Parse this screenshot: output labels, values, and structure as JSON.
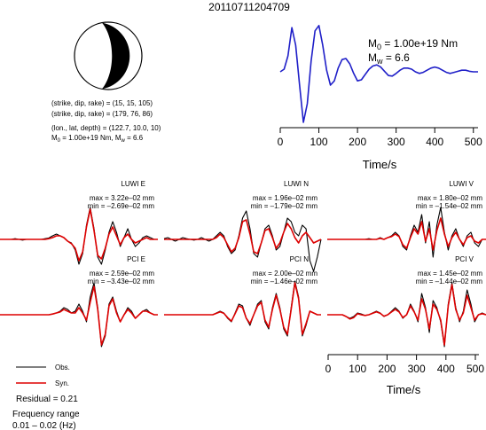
{
  "event_id": "20110711204709",
  "mechanism": {
    "line1": "(strike, dip, rake) = (15, 15, 105)",
    "line2": "(strike, dip, rake) = (179, 76, 86)",
    "line3": "(lon., lat, depth) = (122.7, 10.0, 10)",
    "line4_prefix": "M",
    "line4_sub0": "0",
    "line4_mid": " = 1.00e+19 Nm, M",
    "line4_subw": "w",
    "line4_end": " = 6.6"
  },
  "stf": {
    "m0_prefix": "M",
    "m0_sub": "0",
    "m0_value": " = 1.00e+19 Nm",
    "mw_prefix": "M",
    "mw_sub": "w",
    "mw_value": " = 6.6",
    "xlabel": "Time/s",
    "line_color": "#1f1fc8"
  },
  "residual": "Residual = 0.21",
  "freq_label": "Frequency range",
  "freq_value": "0.01 – 0.02 (Hz)",
  "legend": [
    {
      "label": "Obs.",
      "color": "#000000"
    },
    {
      "label": "Syn.",
      "color": "#dd0000"
    }
  ],
  "panels": [
    {
      "title": "LUWI E",
      "max": "max = 3.22e–02 mm",
      "min": "min = –2.69e–02 mm"
    },
    {
      "title": "LUWI N",
      "max": "max = 1.96e–02 mm",
      "min": "min = –1.79e–02 mm"
    },
    {
      "title": "LUWI V",
      "max": "max = 1.80e–02 mm",
      "min": "min = –1.54e–02 mm"
    },
    {
      "title": "PCI E",
      "max": "max = 2.59e–02 mm",
      "min": "min = –3.43e–02 mm"
    },
    {
      "title": "PCI N",
      "max": "max = 2.00e–02 mm",
      "min": "min = –1.46e–02 mm"
    },
    {
      "title": "PCI V",
      "max": "max = 1.45e–02 mm",
      "min": "min = –1.44e–02 mm"
    }
  ],
  "wave_xlabel": "Time/s",
  "chart_data": [
    {
      "type": "line",
      "title": "",
      "xlabel": "Time/s",
      "ylabel": "",
      "xlim": [
        0,
        512
      ],
      "xticks": [
        0,
        100,
        200,
        300,
        400,
        500
      ],
      "series": [
        {
          "x": [
            0,
            10,
            20,
            30,
            40,
            50,
            60,
            70,
            80,
            90,
            100,
            110,
            120,
            130,
            140,
            150,
            160,
            170,
            180,
            190,
            200,
            210,
            220,
            230,
            240,
            250,
            260,
            270,
            280,
            290,
            300,
            310,
            320,
            330,
            340,
            350,
            360,
            370,
            380,
            390,
            400,
            410,
            420,
            430,
            440,
            450,
            460,
            470,
            480,
            490,
            500,
            512
          ],
          "y": [
            0.05,
            0.1,
            0.35,
            0.88,
            0.55,
            -0.2,
            -0.9,
            -0.55,
            0.25,
            0.82,
            0.92,
            0.55,
            0.08,
            -0.2,
            -0.12,
            0.12,
            0.28,
            0.3,
            0.2,
            0.02,
            -0.12,
            -0.1,
            0.0,
            0.1,
            0.16,
            0.18,
            0.14,
            0.06,
            -0.02,
            -0.03,
            0.02,
            0.08,
            0.12,
            0.12,
            0.1,
            0.05,
            0.02,
            0.04,
            0.08,
            0.12,
            0.14,
            0.12,
            0.08,
            0.04,
            0.02,
            0.04,
            0.06,
            0.08,
            0.08,
            0.06,
            0.05,
            0.05
          ]
        }
      ]
    },
    {
      "type": "line",
      "title": "",
      "xlabel": "Time/s",
      "xlim": [
        0,
        512
      ],
      "xticks": [
        0,
        100,
        200,
        300,
        400,
        500
      ],
      "panels": [
        {
          "name": "LUWI E",
          "ylim": [
            -1,
            1
          ],
          "obs": [
            0,
            0,
            0,
            0,
            0.02,
            0,
            -0.02,
            0,
            0,
            0,
            0,
            0,
            0.02,
            0.04,
            0.1,
            0.15,
            0.1,
            0.05,
            -0.05,
            -0.1,
            -0.3,
            -0.7,
            -0.4,
            0.4,
            0.9,
            0.3,
            -0.5,
            -0.7,
            -0.3,
            0.2,
            0.5,
            0.2,
            -0.2,
            0.05,
            0.3,
            0,
            -0.2,
            -0.1,
            0.05,
            0.1,
            0.05,
            0,
            0
          ],
          "syn": [
            0,
            0,
            0,
            0,
            0,
            0,
            0,
            0,
            0,
            0,
            0,
            0,
            0,
            0.02,
            0.05,
            0.1,
            0.1,
            0.05,
            -0.05,
            -0.12,
            -0.25,
            -0.6,
            -0.35,
            0.35,
            0.85,
            0.25,
            -0.45,
            -0.55,
            -0.25,
            0.15,
            0.35,
            0.1,
            -0.15,
            0.05,
            0.15,
            0,
            -0.1,
            -0.05,
            0,
            0.05,
            0,
            0,
            0
          ]
        },
        {
          "name": "LUWI N",
          "ylim": [
            -1,
            1
          ],
          "obs": [
            0.02,
            0.05,
            0,
            -0.05,
            0,
            0.05,
            0.02,
            0,
            -0.02,
            0,
            0.05,
            0,
            -0.05,
            0,
            0.1,
            0.2,
            0.1,
            -0.2,
            -0.4,
            -0.3,
            0.1,
            0.6,
            0.8,
            0.3,
            -0.4,
            -0.5,
            -0.1,
            0.3,
            0.4,
            0.1,
            -0.3,
            -0.2,
            0.2,
            0.6,
            0.5,
            0.2,
            0.1,
            0.4,
            0.3,
            -0.6,
            -0.9,
            -0.5,
            0
          ],
          "syn": [
            0,
            0,
            0,
            0,
            0,
            0,
            0,
            0,
            0,
            0,
            0,
            0,
            0,
            0,
            0.05,
            0.15,
            0.05,
            -0.15,
            -0.35,
            -0.25,
            0.05,
            0.5,
            0.55,
            0.15,
            -0.35,
            -0.4,
            -0.1,
            0.25,
            0.3,
            0.05,
            -0.25,
            -0.1,
            0.2,
            0.45,
            0.3,
            0.05,
            -0.1,
            0.1,
            0.2,
            0.05,
            -0.1,
            -0.05,
            0
          ]
        },
        {
          "name": "LUWI V",
          "ylim": [
            -1,
            1
          ],
          "obs": [
            0,
            0,
            0,
            0,
            0,
            0,
            0,
            0,
            0,
            0,
            0,
            0.02,
            0,
            0,
            0.05,
            0,
            0.05,
            0.1,
            0.2,
            0.1,
            -0.2,
            -0.3,
            0.1,
            0.4,
            0.2,
            0.7,
            -0.1,
            0.5,
            -0.5,
            0.4,
            0.9,
            0.2,
            -0.3,
            0.1,
            0.3,
            0,
            -0.2,
            0.1,
            0.2,
            -0.1,
            -0.2,
            0,
            0
          ],
          "syn": [
            0,
            0,
            0,
            0,
            0,
            0,
            0,
            0,
            0,
            0,
            0,
            0,
            0,
            0,
            0.03,
            0,
            0.05,
            0.08,
            0.15,
            0.08,
            -0.15,
            -0.25,
            0.05,
            0.3,
            0.15,
            0.5,
            -0.05,
            0.3,
            -0.3,
            0.25,
            0.6,
            0.15,
            -0.2,
            0.05,
            0.2,
            0,
            -0.15,
            0.05,
            0.1,
            -0.05,
            -0.1,
            0,
            0
          ]
        },
        {
          "name": "PCI E",
          "ylim": [
            -1,
            1
          ],
          "obs": [
            0,
            0,
            0,
            0,
            0,
            0,
            0,
            0,
            0,
            0,
            0,
            0,
            0,
            0,
            0.02,
            0.05,
            0.1,
            0.2,
            0.15,
            0.05,
            0.1,
            0.3,
            0.1,
            -0.2,
            0.5,
            0.9,
            0.2,
            -0.9,
            -0.6,
            0.3,
            0.5,
            0.1,
            -0.2,
            0,
            0.2,
            0.1,
            -0.1,
            0,
            0.1,
            0.15,
            0.05,
            0,
            0
          ],
          "syn": [
            0,
            0,
            0,
            0,
            0,
            0,
            0,
            0,
            0,
            0,
            0,
            0,
            0,
            0,
            0.02,
            0.05,
            0.08,
            0.15,
            0.1,
            0.05,
            0.05,
            0.2,
            0.05,
            -0.15,
            0.35,
            0.8,
            0.15,
            -0.85,
            -0.55,
            0.25,
            0.45,
            0.05,
            -0.2,
            0,
            0.15,
            0.05,
            -0.1,
            0,
            0.1,
            0.1,
            0.05,
            0,
            0
          ]
        },
        {
          "name": "PCI N",
          "ylim": [
            -1,
            1
          ],
          "obs": [
            0,
            0,
            0,
            0,
            0,
            0,
            0,
            0,
            0,
            0,
            0,
            0,
            0,
            0,
            0.05,
            0.1,
            0.05,
            -0.1,
            -0.2,
            0.05,
            0.3,
            0.25,
            -0.1,
            -0.3,
            0,
            0.3,
            0.4,
            -0.2,
            -0.4,
            0.2,
            0.6,
            0.2,
            -0.4,
            -0.6,
            0.2,
            0.95,
            0.5,
            -0.6,
            -0.3,
            0.1,
            0.05,
            0,
            0
          ],
          "syn": [
            0,
            0,
            0,
            0,
            0,
            0,
            0,
            0,
            0,
            0,
            0,
            0,
            0,
            0,
            0.04,
            0.08,
            0.04,
            -0.08,
            -0.18,
            0.03,
            0.25,
            0.2,
            -0.1,
            -0.25,
            0,
            0.25,
            0.35,
            -0.15,
            -0.35,
            0.15,
            0.55,
            0.15,
            -0.35,
            -0.55,
            0.15,
            0.9,
            0.45,
            -0.55,
            -0.25,
            0.1,
            0.05,
            0,
            0
          ]
        },
        {
          "name": "PCI V",
          "ylim": [
            -1,
            1
          ],
          "obs": [
            0,
            0,
            0,
            0,
            0,
            -0.05,
            -0.1,
            -0.05,
            0.05,
            0.02,
            -0.02,
            0,
            0.05,
            0.1,
            0.05,
            -0.05,
            0,
            0.1,
            0.2,
            0.1,
            -0.1,
            0,
            0.3,
            0.1,
            -0.2,
            0.6,
            0.2,
            -0.5,
            0.4,
            0.2,
            -0.2,
            -0.9,
            0.3,
            0.9,
            0.2,
            -0.2,
            0.1,
            0.7,
            0.3,
            -0.2,
            0,
            0.05,
            0
          ],
          "syn": [
            0,
            0,
            0,
            0,
            0,
            -0.05,
            -0.12,
            -0.08,
            0.03,
            0,
            -0.02,
            0,
            0.04,
            0.08,
            0.04,
            -0.04,
            0,
            0.08,
            0.15,
            0.08,
            -0.08,
            0,
            0.25,
            0.08,
            -0.15,
            0.45,
            0.15,
            -0.4,
            0.3,
            0.15,
            -0.15,
            -0.85,
            0.25,
            0.85,
            0.15,
            -0.15,
            0.05,
            0.55,
            0.2,
            -0.15,
            0,
            0.03,
            0
          ]
        }
      ]
    }
  ]
}
